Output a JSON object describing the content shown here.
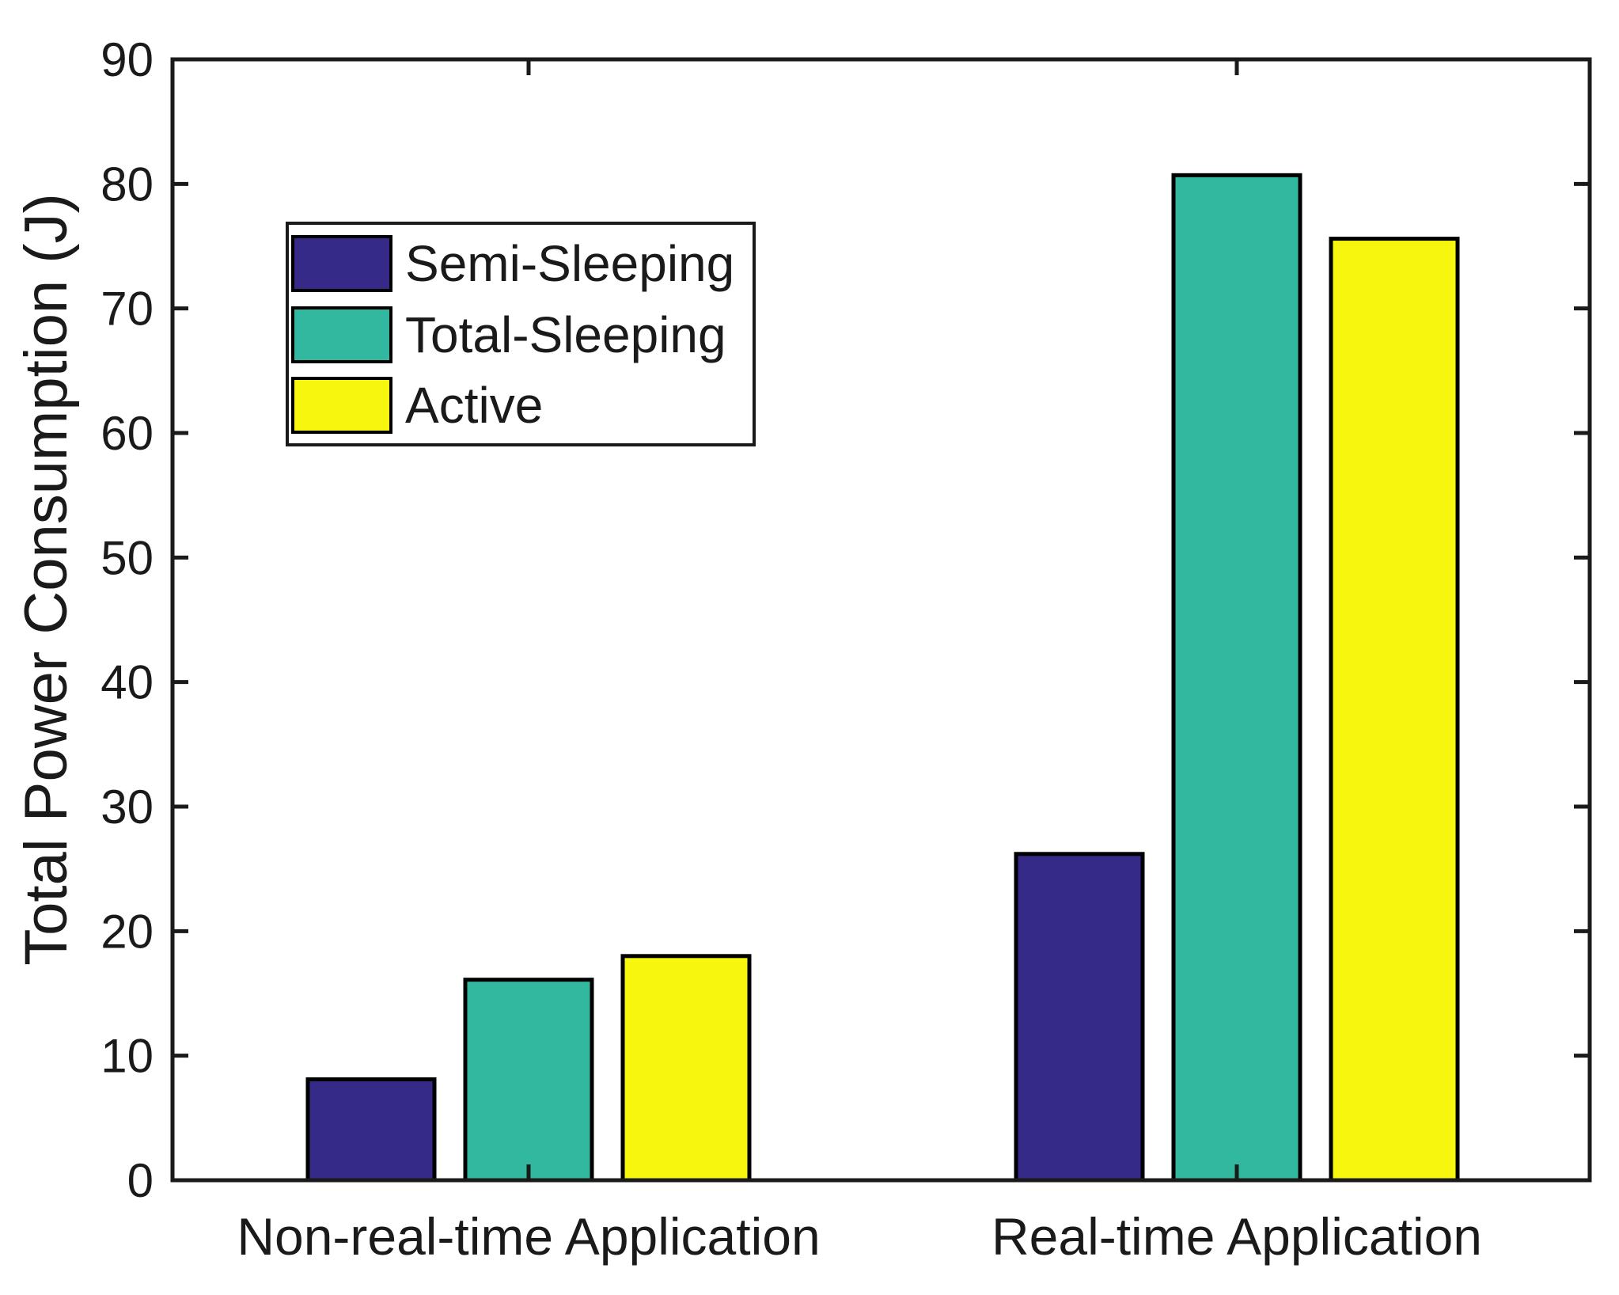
{
  "figure": {
    "background": "#FFFFFF",
    "axis_color": "#1A1A1A",
    "y_axis_label": "Total Power Consumption (J)"
  },
  "chart_data": {
    "type": "bar",
    "title": "",
    "xlabel": "",
    "ylabel": "Total Power Consumption (J)",
    "categories": [
      "Non-real-time Application",
      "Real-time Application"
    ],
    "series": [
      {
        "name": "Semi-Sleeping",
        "color": "#352A87",
        "values": [
          8.1,
          26.2
        ]
      },
      {
        "name": "Total-Sleeping",
        "color": "#33B8A0",
        "values": [
          16.1,
          80.7
        ]
      },
      {
        "name": "Active",
        "color": "#F6F60E",
        "values": [
          18.0,
          75.6
        ]
      }
    ],
    "ylim": [
      0,
      90
    ],
    "yticks": [
      0,
      10,
      20,
      30,
      40,
      50,
      60,
      70,
      80,
      90
    ],
    "ytick_labels": [
      "0",
      "10",
      "20",
      "30",
      "40",
      "50",
      "60",
      "70",
      "80",
      "90"
    ],
    "grid": false,
    "bar_edge_color": "#000000",
    "legend_position": "upper-left-inside",
    "legend_entries": [
      "Semi-Sleeping",
      "Total-Sleeping",
      "Active"
    ]
  }
}
